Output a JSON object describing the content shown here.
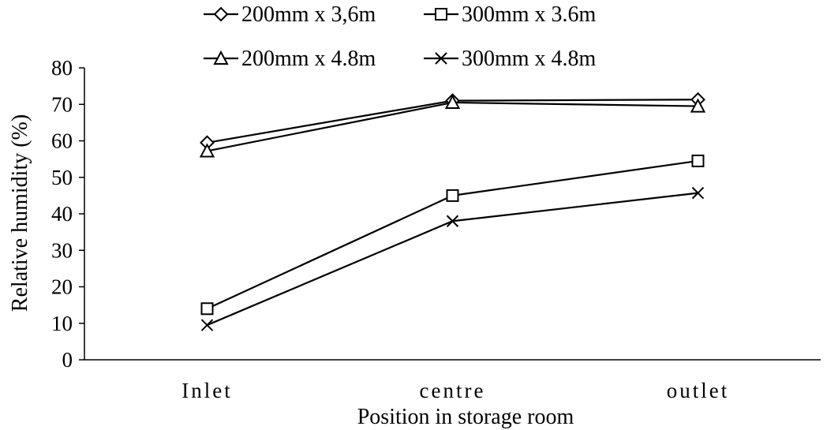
{
  "chart_data": {
    "type": "line",
    "categories": [
      "Inlet",
      "centre",
      "outlet"
    ],
    "xlabel": "Position in storage room",
    "ylabel": "Relative humidity (%)",
    "ylim": [
      0,
      80
    ],
    "yticks": [
      0,
      10,
      20,
      30,
      40,
      50,
      60,
      70,
      80
    ],
    "grid": false,
    "legend_position": "top",
    "series": [
      {
        "name": "200mm x 3,6m",
        "marker": "diamond",
        "values": [
          59.5,
          71.0,
          71.3
        ]
      },
      {
        "name": "300mm x 3.6m",
        "marker": "square",
        "values": [
          14.0,
          45.0,
          54.5
        ]
      },
      {
        "name": "200mm x 4.8m",
        "marker": "triangle",
        "values": [
          57.2,
          70.5,
          69.5
        ]
      },
      {
        "name": "300mm x 4.8m",
        "marker": "x",
        "values": [
          9.5,
          38.0,
          45.7
        ]
      }
    ]
  }
}
